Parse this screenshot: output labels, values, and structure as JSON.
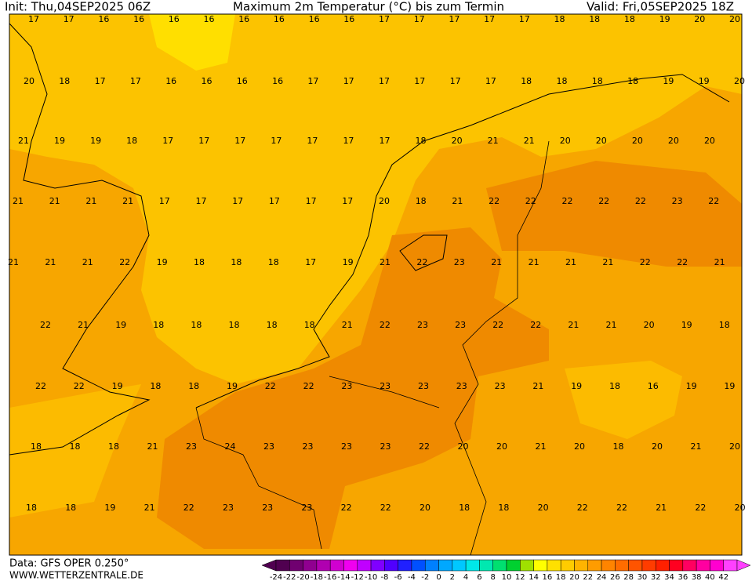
{
  "header": {
    "init": "Init: Thu,04SEP2025 06Z",
    "title": "Maximum 2m Temperatur (°C) bis zum Termin",
    "valid": "Valid: Fri,05SEP2025 18Z"
  },
  "map": {
    "rows": [
      [
        17,
        17,
        16,
        16,
        16,
        16,
        16,
        16,
        16,
        16,
        17,
        17,
        17,
        17,
        17,
        18,
        18,
        18,
        19,
        20,
        20
      ],
      [
        20,
        18,
        17,
        17,
        16,
        16,
        16,
        16,
        17,
        17,
        17,
        17,
        17,
        17,
        18,
        18,
        18,
        18,
        19,
        19,
        20
      ],
      [
        21,
        19,
        19,
        18,
        17,
        17,
        17,
        17,
        17,
        17,
        17,
        18,
        20,
        21,
        21,
        20,
        20,
        20,
        20,
        20
      ],
      [
        21,
        21,
        21,
        21,
        17,
        17,
        17,
        17,
        17,
        17,
        20,
        18,
        21,
        22,
        22,
        22,
        22,
        22,
        23,
        22
      ],
      [
        21,
        21,
        21,
        22,
        19,
        18,
        18,
        18,
        17,
        19,
        21,
        22,
        23,
        21,
        21,
        21,
        21,
        22,
        22,
        21
      ],
      [
        22,
        21,
        19,
        18,
        18,
        18,
        18,
        18,
        21,
        22,
        23,
        23,
        22,
        22,
        21,
        21,
        20,
        19,
        18
      ],
      [
        22,
        22,
        19,
        18,
        18,
        19,
        22,
        22,
        23,
        23,
        23,
        23,
        23,
        21,
        19,
        18,
        16,
        19,
        19
      ],
      [
        18,
        18,
        18,
        21,
        23,
        24,
        23,
        23,
        23,
        23,
        22,
        20,
        20,
        21,
        20,
        18,
        20,
        21,
        20
      ],
      [
        18,
        18,
        19,
        21,
        22,
        23,
        23,
        23,
        22,
        22,
        20,
        18,
        18,
        20,
        22,
        22,
        21,
        22,
        20
      ]
    ]
  },
  "colorbar": {
    "labels": [
      -24,
      -22,
      -20,
      -18,
      -16,
      -14,
      -12,
      -10,
      -8,
      -6,
      -4,
      -2,
      0,
      2,
      4,
      6,
      8,
      10,
      12,
      14,
      16,
      18,
      20,
      22,
      24,
      26,
      28,
      30,
      32,
      34,
      36,
      38,
      40,
      42
    ],
    "colors": [
      "#500050",
      "#700070",
      "#900090",
      "#b000b0",
      "#d000d0",
      "#f000f0",
      "#c000ff",
      "#8000ff",
      "#5000ff",
      "#2020ff",
      "#0050ff",
      "#0080ff",
      "#00a8ff",
      "#00c8ff",
      "#00e8e8",
      "#00e8b0",
      "#00e070",
      "#00d030",
      "#a0e000",
      "#ffff00",
      "#ffe000",
      "#ffcc00",
      "#ffb400",
      "#ff9c00",
      "#ff8400",
      "#ff6c00",
      "#ff5400",
      "#ff3c00",
      "#ff2000",
      "#ff0020",
      "#ff0060",
      "#ff00a0",
      "#ff00d0",
      "#ff40ff"
    ]
  },
  "footer": {
    "data": "Data: GFS OPER 0.250°",
    "site": "WWW.WETTERZENTRALE.DE"
  }
}
